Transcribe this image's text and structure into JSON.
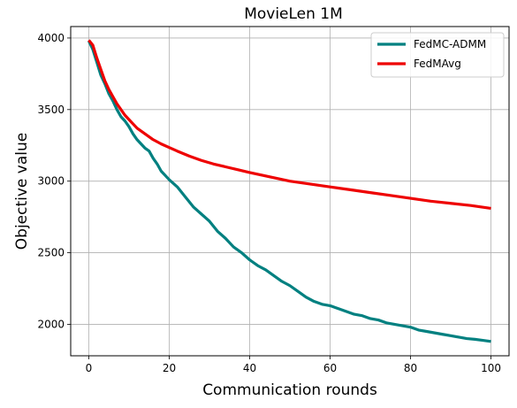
{
  "chart_data": {
    "type": "line",
    "title": "MovieLen 1M",
    "xlabel": "Communication rounds",
    "ylabel": "Objective value",
    "xlim": [
      -4.5,
      104.5
    ],
    "ylim": [
      1780,
      4080
    ],
    "xticks": [
      0,
      20,
      40,
      60,
      80,
      100
    ],
    "yticks": [
      2000,
      2500,
      3000,
      3500,
      4000
    ],
    "grid": true,
    "legend_position": "top-right",
    "series": [
      {
        "name": "FedMC-ADMM",
        "color": "#008080",
        "x": [
          0,
          1,
          2,
          3,
          4,
          5,
          6,
          7,
          8,
          9,
          10,
          11,
          12,
          13,
          14,
          15,
          16,
          17,
          18,
          19,
          20,
          22,
          24,
          26,
          28,
          30,
          32,
          34,
          36,
          38,
          40,
          42,
          44,
          46,
          48,
          50,
          52,
          54,
          56,
          58,
          60,
          62,
          64,
          66,
          68,
          70,
          72,
          74,
          76,
          78,
          80,
          82,
          84,
          86,
          88,
          90,
          92,
          94,
          96,
          98,
          100
        ],
        "values": [
          3980,
          3920,
          3830,
          3740,
          3680,
          3610,
          3560,
          3500,
          3450,
          3420,
          3380,
          3330,
          3290,
          3260,
          3230,
          3210,
          3160,
          3120,
          3070,
          3040,
          3010,
          2960,
          2890,
          2820,
          2770,
          2720,
          2650,
          2600,
          2540,
          2500,
          2450,
          2410,
          2380,
          2340,
          2300,
          2270,
          2230,
          2190,
          2160,
          2140,
          2130,
          2110,
          2090,
          2070,
          2060,
          2040,
          2030,
          2010,
          2000,
          1990,
          1980,
          1960,
          1950,
          1940,
          1930,
          1920,
          1910,
          1900,
          1895,
          1888,
          1880
        ]
      },
      {
        "name": "FedMAvg",
        "color": "#ee0000",
        "x": [
          0,
          1,
          2,
          3,
          4,
          5,
          6,
          7,
          8,
          9,
          10,
          12,
          14,
          16,
          18,
          20,
          22,
          25,
          28,
          31,
          34,
          37,
          40,
          45,
          50,
          55,
          60,
          65,
          70,
          75,
          80,
          85,
          90,
          95,
          100
        ],
        "values": [
          3985,
          3950,
          3860,
          3780,
          3700,
          3640,
          3590,
          3540,
          3500,
          3460,
          3430,
          3370,
          3330,
          3290,
          3260,
          3235,
          3210,
          3175,
          3145,
          3120,
          3100,
          3080,
          3060,
          3030,
          3000,
          2980,
          2960,
          2940,
          2920,
          2900,
          2880,
          2860,
          2845,
          2830,
          2810
        ]
      }
    ]
  }
}
